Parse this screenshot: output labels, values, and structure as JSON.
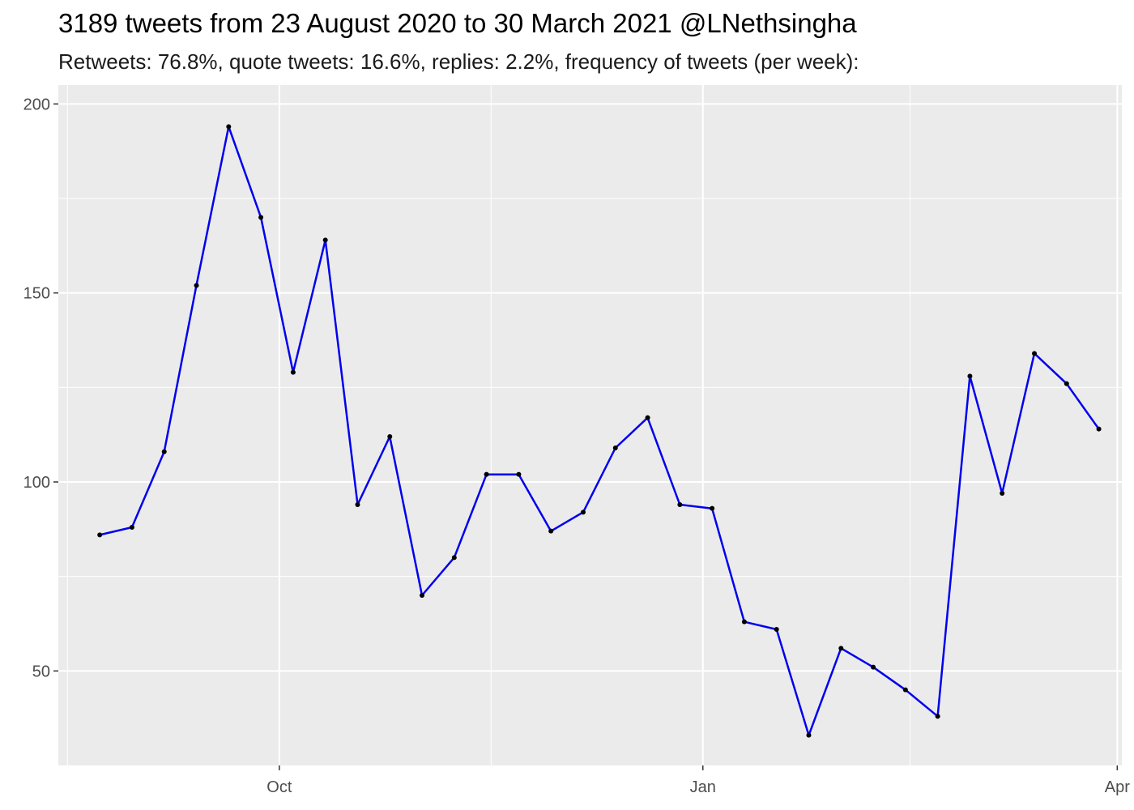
{
  "chart_data": {
    "type": "line",
    "title": "3189 tweets from 23 August 2020 to 30 March 2021 @LNethsingha",
    "subtitle": "Retweets: 76.8%, quote tweets: 16.6%, replies: 2.2%, frequency of tweets (per week):",
    "xlabel": "",
    "ylabel": "",
    "x_ticks": [
      {
        "date": "2020-10-01",
        "label": "Oct"
      },
      {
        "date": "2021-01-01",
        "label": "Jan"
      },
      {
        "date": "2021-04-01",
        "label": "Apr"
      }
    ],
    "y_ticks": [
      50,
      100,
      150,
      200
    ],
    "ylim": [
      25,
      205
    ],
    "xlim": [
      "2020-08-14",
      "2021-04-02"
    ],
    "grid": true,
    "line_color": "#0000EE",
    "point_color": "#000000",
    "panel_color": "#EBEBEB",
    "series": [
      {
        "x": [
          "2020-08-23",
          "2020-08-30",
          "2020-09-06",
          "2020-09-13",
          "2020-09-20",
          "2020-09-27",
          "2020-10-04",
          "2020-10-11",
          "2020-10-18",
          "2020-10-25",
          "2020-11-01",
          "2020-11-08",
          "2020-11-15",
          "2020-11-22",
          "2020-11-29",
          "2020-12-06",
          "2020-12-13",
          "2020-12-20",
          "2020-12-27",
          "2021-01-03",
          "2021-01-10",
          "2021-01-17",
          "2021-01-24",
          "2021-01-31",
          "2021-02-07",
          "2021-02-14",
          "2021-02-21",
          "2021-02-28",
          "2021-03-07",
          "2021-03-14",
          "2021-03-21",
          "2021-03-28"
        ],
        "values": [
          86,
          88,
          108,
          152,
          194,
          170,
          129,
          164,
          94,
          112,
          70,
          80,
          102,
          102,
          87,
          92,
          109,
          117,
          94,
          93,
          63,
          61,
          33,
          56,
          51,
          45,
          38,
          128,
          97,
          134,
          126,
          114
        ]
      }
    ]
  }
}
